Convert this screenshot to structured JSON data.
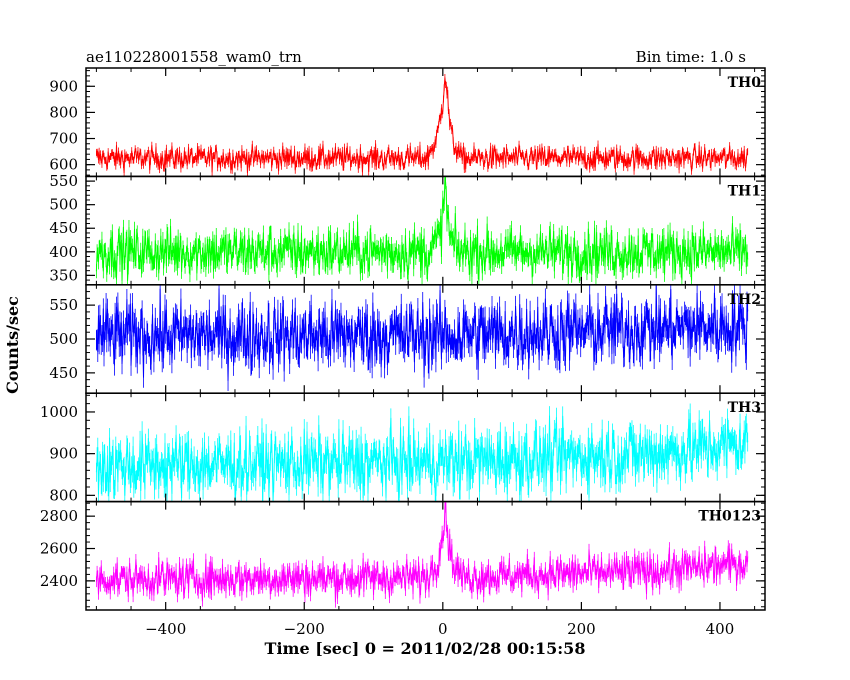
{
  "header": {
    "object_name": "ae110228001558_wam0_trn",
    "bin_time": "Bin time: 1.0 s"
  },
  "chart_data": {
    "type": "line",
    "title": "ae110228001558_wam0_trn",
    "subtitle": "Bin time: 1.0 s",
    "xlabel": "Time [sec] 0 = 2011/02/28 00:15:58",
    "ylabel": "Counts/sec",
    "xlim": [
      -515,
      465
    ],
    "x_ticks": [
      -400,
      -200,
      0,
      200,
      400
    ],
    "x_tick_labels": [
      "−400",
      "−200",
      "0",
      "200",
      "400"
    ],
    "bin_time_s": 1.0,
    "x_range_data": [
      -500,
      440
    ],
    "grid": false,
    "panels": [
      {
        "name": "TH0",
        "color": "#ff0000",
        "ylim": [
          555,
          970
        ],
        "yticks": [
          600,
          700,
          800,
          900
        ],
        "tick_labels": [
          "600",
          "700",
          "800",
          "900"
        ],
        "baseline": 625,
        "noise": 22,
        "trend": [
          [
            -500,
            625
          ],
          [
            440,
            625
          ]
        ],
        "features": [
          [
            -20,
            650
          ],
          [
            -10,
            680
          ],
          [
            0,
            840
          ],
          [
            3,
            950
          ],
          [
            6,
            880
          ],
          [
            10,
            760
          ],
          [
            15,
            680
          ],
          [
            25,
            640
          ]
        ]
      },
      {
        "name": "TH1",
        "color": "#00ff00",
        "ylim": [
          330,
          560
        ],
        "yticks": [
          350,
          400,
          450,
          500,
          550
        ],
        "tick_labels": [
          "350",
          "400",
          "450",
          "500",
          "550"
        ],
        "baseline": 400,
        "noise": 25,
        "trend": [
          [
            -500,
            400
          ],
          [
            440,
            400
          ]
        ],
        "features": [
          [
            -15,
            410
          ],
          [
            -5,
            430
          ],
          [
            0,
            470
          ],
          [
            3,
            545
          ],
          [
            6,
            490
          ],
          [
            10,
            430
          ],
          [
            20,
            405
          ]
        ]
      },
      {
        "name": "TH2",
        "color": "#0000ff",
        "ylim": [
          420,
          580
        ],
        "yticks": [
          450,
          500,
          550
        ],
        "tick_labels": [
          "450",
          "500",
          "550"
        ],
        "baseline": 510,
        "noise": 25,
        "trend": [
          [
            -500,
            505
          ],
          [
            0,
            505
          ],
          [
            300,
            515
          ],
          [
            440,
            520
          ]
        ],
        "features": []
      },
      {
        "name": "TH3",
        "color": "#00ffff",
        "ylim": [
          785,
          1045
        ],
        "yticks": [
          800,
          900,
          1000
        ],
        "tick_labels": [
          "800",
          "900",
          "1000"
        ],
        "baseline": 870,
        "noise": 38,
        "trend": [
          [
            -500,
            870
          ],
          [
            0,
            880
          ],
          [
            300,
            900
          ],
          [
            440,
            925
          ]
        ],
        "features": []
      },
      {
        "name": "TH0123",
        "color": "#ff00ff",
        "ylim": [
          2220,
          2890
        ],
        "yticks": [
          2400,
          2600,
          2800
        ],
        "tick_labels": [
          "2400",
          "2600",
          "2800"
        ],
        "baseline": 2410,
        "noise": 55,
        "trend": [
          [
            -500,
            2410
          ],
          [
            0,
            2420
          ],
          [
            300,
            2460
          ],
          [
            440,
            2510
          ]
        ],
        "features": [
          [
            -20,
            2450
          ],
          [
            -10,
            2500
          ],
          [
            0,
            2680
          ],
          [
            3,
            2860
          ],
          [
            6,
            2750
          ],
          [
            10,
            2600
          ],
          [
            15,
            2500
          ],
          [
            25,
            2450
          ]
        ]
      }
    ]
  }
}
